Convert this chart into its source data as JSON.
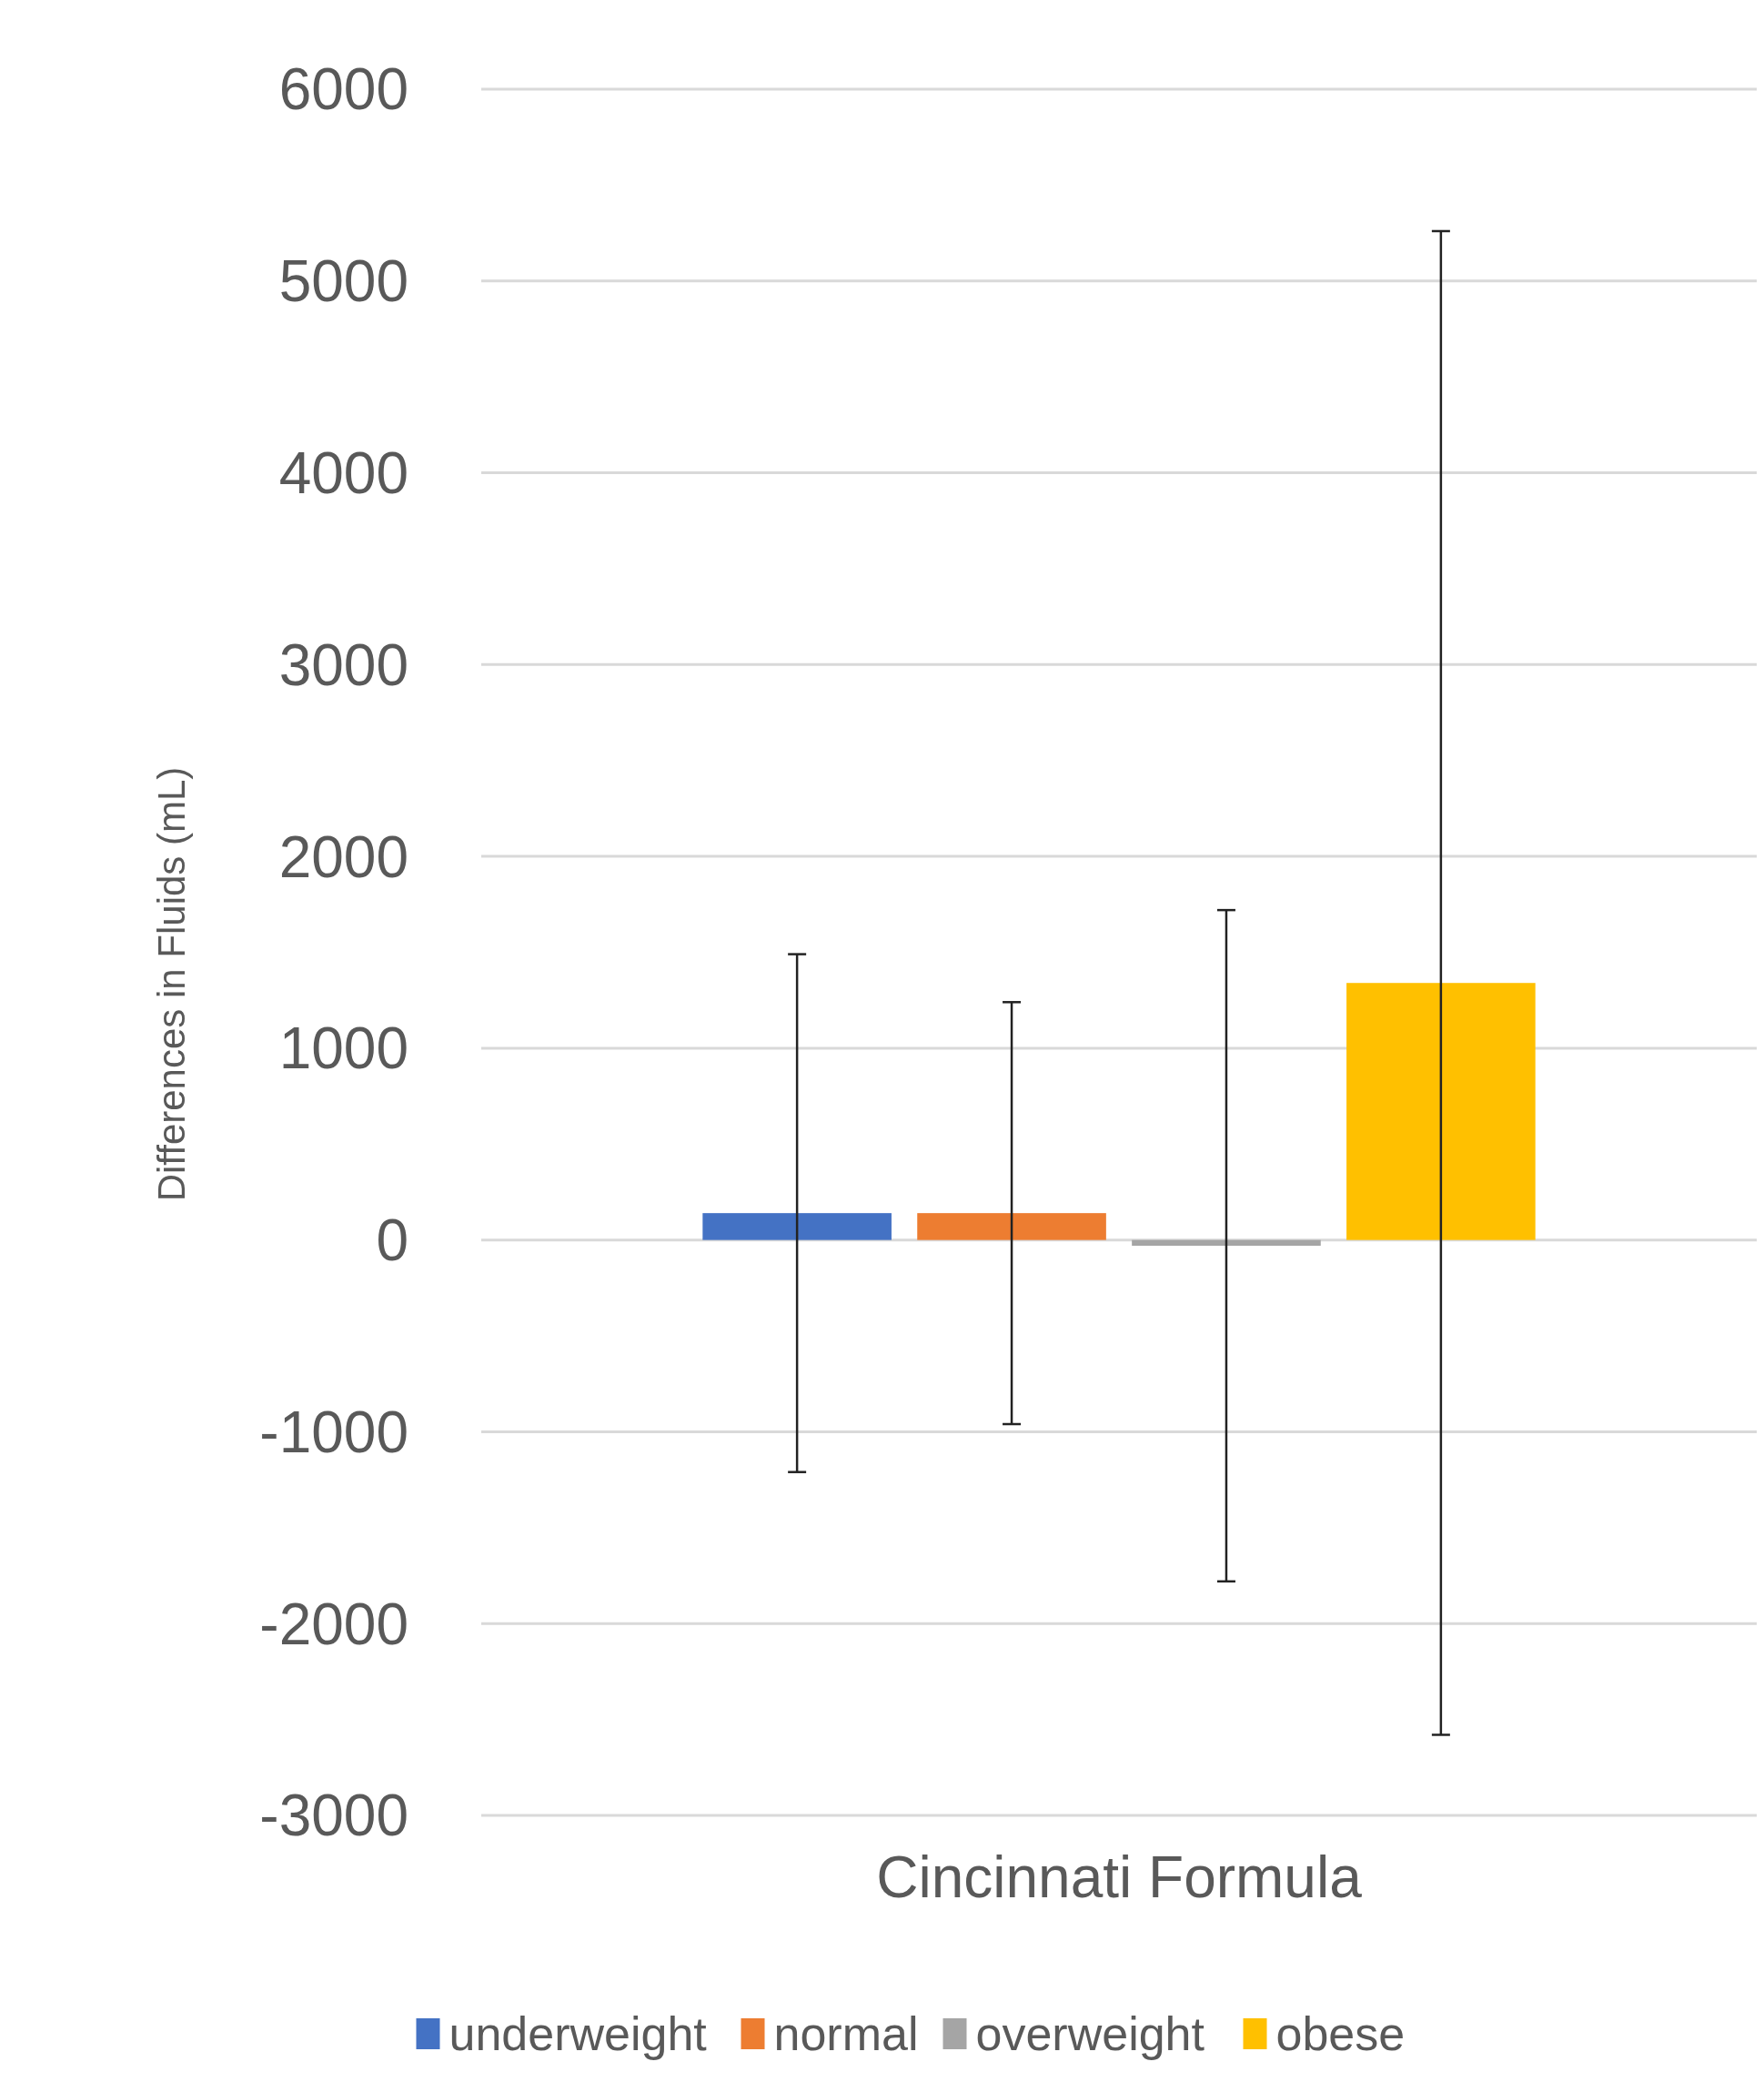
{
  "chart_data": {
    "type": "bar",
    "ylabel": "Differences in Fluids (mL)",
    "categories": [
      "Cincinnati Formula"
    ],
    "series": [
      {
        "name": "underweight",
        "color": "#4472c4",
        "values": [
          140
        ],
        "errors": [
          1350
        ]
      },
      {
        "name": "normal",
        "color": "#ed7d31",
        "values": [
          140
        ],
        "errors": [
          1100
        ]
      },
      {
        "name": "overweight",
        "color": "#a5a5a5",
        "values": [
          -30
        ],
        "errors": [
          1750
        ]
      },
      {
        "name": "obese",
        "color": "#ffc000",
        "values": [
          1340
        ],
        "errors": [
          3920
        ]
      }
    ],
    "ylim": [
      -3000,
      6000
    ],
    "yticks": [
      -3000,
      -2000,
      -1000,
      0,
      1000,
      2000,
      3000,
      4000,
      5000,
      6000
    ],
    "grid": "y",
    "legend": "bottom"
  }
}
